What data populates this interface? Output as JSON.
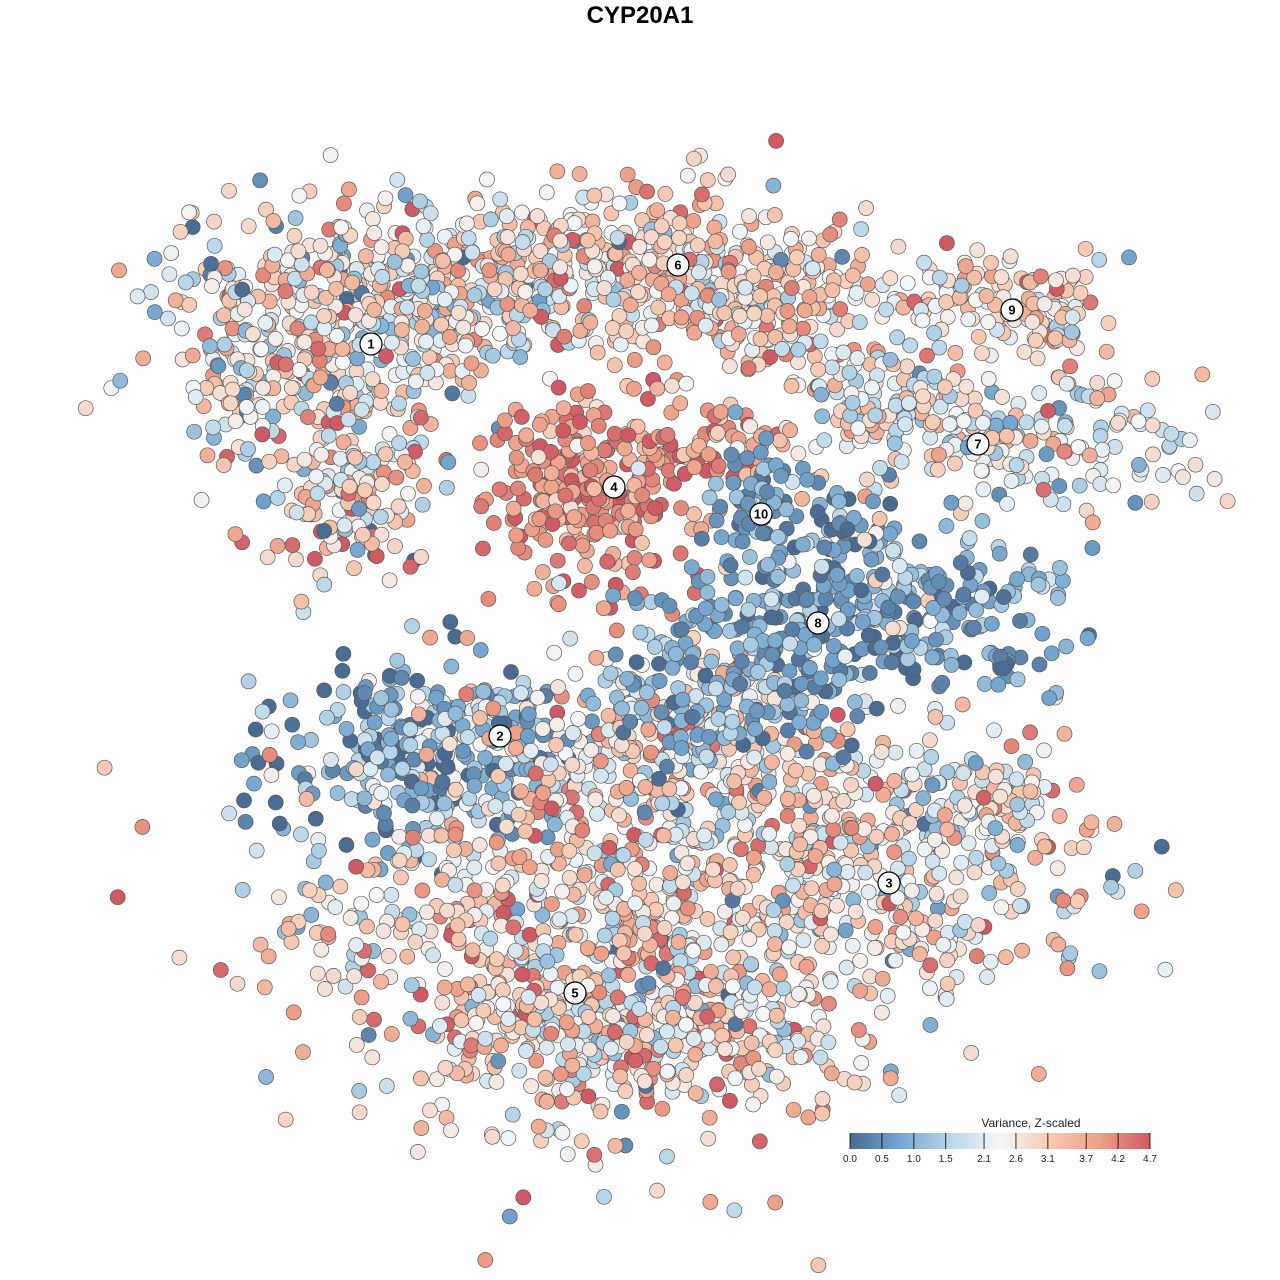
{
  "chart_data": {
    "type": "scatter",
    "title": "CYP20A1",
    "legend": {
      "title": "Variance, Z-scaled",
      "placement": "bottom-right",
      "ticks": [
        "0.0",
        "0.5",
        "1.0",
        "1.5",
        "2.1",
        "2.6",
        "3.1",
        "3.7",
        "4.2",
        "4.7"
      ],
      "tick_values": [
        0.0,
        0.5,
        1.0,
        1.5,
        2.1,
        2.6,
        3.1,
        3.7,
        4.2,
        4.7
      ],
      "range": [
        0.0,
        4.7
      ],
      "colors": [
        "#4a6b92",
        "#74a6cf",
        "#b7d6e8",
        "#f4f6f8",
        "#f6c9b2",
        "#ee9f87",
        "#cf5a63"
      ]
    },
    "clusters": [
      {
        "label": "1",
        "mean_value": 2.6
      },
      {
        "label": "2",
        "mean_value": 1.0
      },
      {
        "label": "3",
        "mean_value": 2.5
      },
      {
        "label": "4",
        "mean_value": 4.0
      },
      {
        "label": "5",
        "mean_value": 2.8
      },
      {
        "label": "6",
        "mean_value": 2.9
      },
      {
        "label": "7",
        "mean_value": 2.3
      },
      {
        "label": "8",
        "mean_value": 0.8
      },
      {
        "label": "9",
        "mean_value": 2.8
      },
      {
        "label": "10",
        "mean_value": 0.8
      }
    ],
    "grid": false,
    "axes_visible": false
  }
}
